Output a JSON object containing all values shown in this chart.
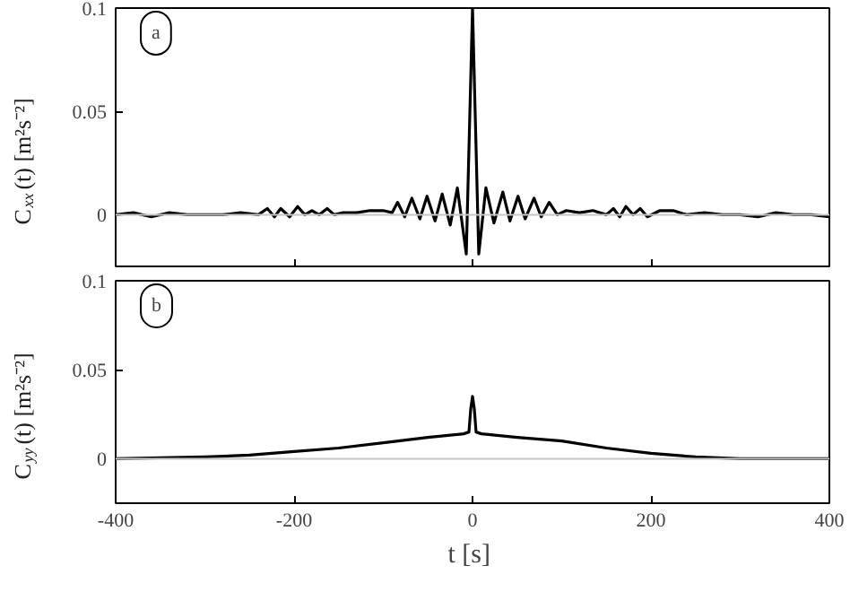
{
  "chart_data": [
    {
      "type": "line",
      "ylabel": "C$_{xx}$(t)  [m²s⁻²]",
      "annotations": [
        "a"
      ],
      "tick_labels": "y",
      "xlim": [
        -400,
        400
      ],
      "xticks": [
        -400,
        -200,
        0,
        200,
        400
      ],
      "ylim": [
        -0.025,
        0.1
      ],
      "yticks": [
        0,
        0.05,
        0.1
      ],
      "grid": false,
      "ref_lines": [
        {
          "axis": "y",
          "value": 0,
          "color": "#c8c8c8"
        }
      ],
      "series": [
        {
          "color": "#000000",
          "x": [
            -400,
            -380,
            -360,
            -340,
            -320,
            -300,
            -280,
            -260,
            -240,
            -230,
            -222,
            -215,
            -205,
            -196,
            -188,
            -180,
            -172,
            -163,
            -155,
            -145,
            -130,
            -115,
            -100,
            -90,
            -84,
            -76,
            -68,
            -59,
            -51,
            -42,
            -34,
            -25,
            -17,
            -7,
            0,
            7,
            15,
            24,
            34,
            42,
            51,
            59,
            69,
            77,
            86,
            95,
            105,
            120,
            135,
            150,
            158,
            165,
            172,
            180,
            188,
            196,
            210,
            225,
            240,
            260,
            280,
            300,
            320,
            340,
            360,
            380,
            400
          ],
          "values": [
            0,
            0.001,
            -0.001,
            0.001,
            0,
            0,
            0,
            0.001,
            0,
            0.003,
            -0.001,
            0.003,
            -0.001,
            0.004,
            0,
            0.002,
            0,
            0.003,
            0,
            0.001,
            0.001,
            0.002,
            0.002,
            0.001,
            0.006,
            -0.001,
            0.008,
            -0.002,
            0.009,
            -0.003,
            0.01,
            -0.005,
            0.013,
            -0.019,
            0.1,
            -0.019,
            0.013,
            -0.004,
            0.011,
            -0.003,
            0.009,
            -0.002,
            0.008,
            -0.001,
            0.006,
            0,
            0.002,
            0.001,
            0.002,
            0,
            0.003,
            -0.001,
            0.004,
            0,
            0.003,
            -0.001,
            0.002,
            0.002,
            0,
            0.001,
            0,
            0,
            -0.001,
            0.001,
            0,
            0,
            -0.001
          ]
        }
      ]
    },
    {
      "type": "line",
      "xlabel": "t  [s]",
      "ylabel": "C$_{yy}$(t)  [m²s⁻²]",
      "annotations": [
        "b"
      ],
      "xlim": [
        -400,
        400
      ],
      "xticks": [
        -400,
        -200,
        0,
        200,
        400
      ],
      "ylim": [
        -0.025,
        0.1
      ],
      "yticks": [
        0,
        0.05,
        0.1
      ],
      "grid": false,
      "ref_lines": [
        {
          "axis": "y",
          "value": 0,
          "color": "#c8c8c8"
        }
      ],
      "series": [
        {
          "color": "#000000",
          "x": [
            -400,
            -300,
            -250,
            -200,
            -150,
            -100,
            -50,
            -10,
            -4,
            -2,
            0,
            2,
            4,
            10,
            50,
            100,
            150,
            200,
            250,
            300,
            400
          ],
          "values": [
            0,
            0.001,
            0.002,
            0.004,
            0.006,
            0.009,
            0.012,
            0.014,
            0.015,
            0.028,
            0.035,
            0.028,
            0.015,
            0.014,
            0.012,
            0.01,
            0.006,
            0.003,
            0.001,
            0,
            0
          ]
        }
      ]
    }
  ]
}
